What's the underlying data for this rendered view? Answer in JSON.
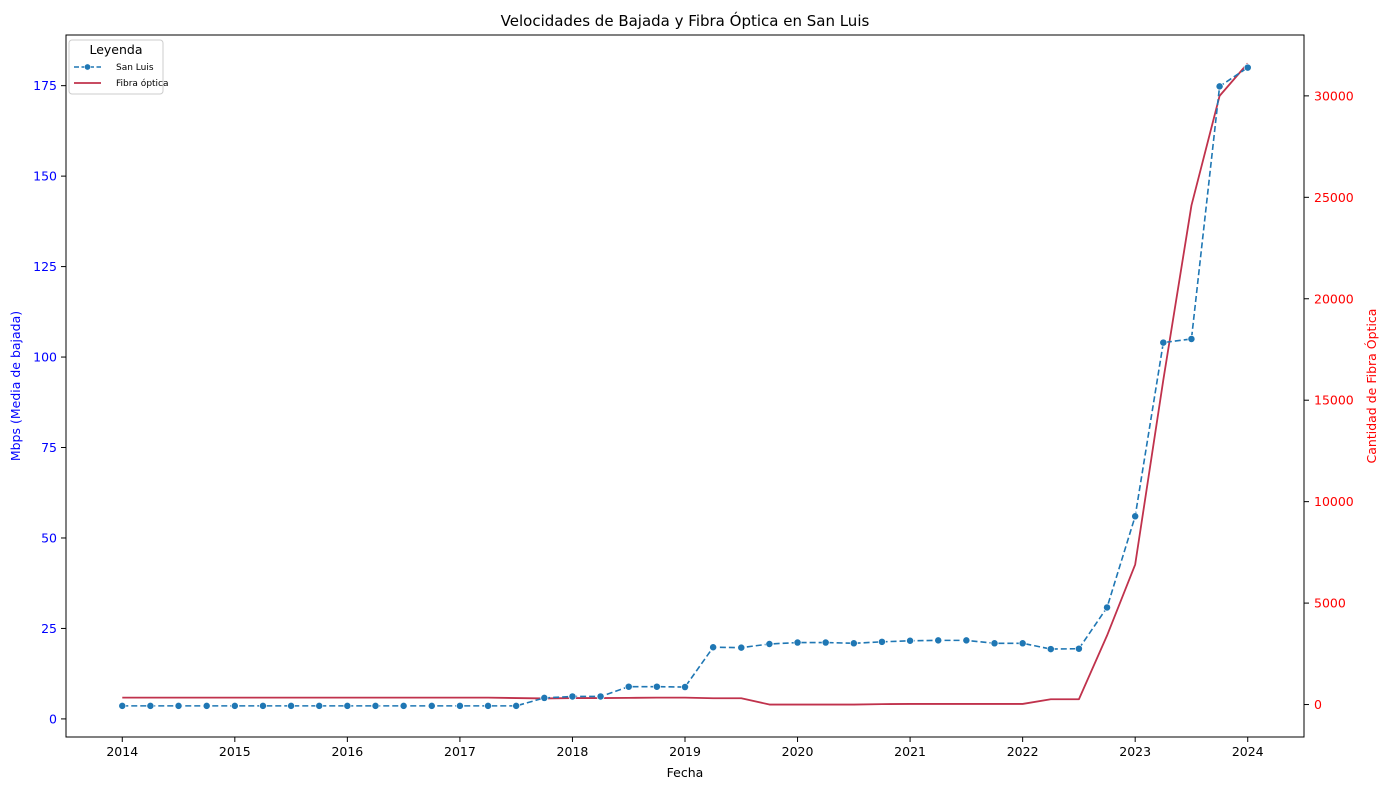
{
  "chart_data": {
    "type": "line",
    "title": "Velocidades de Bajada y Fibra Óptica en San Luis",
    "xlabel": "Fecha",
    "ylabel_left": "Mbps (Media de bajada)",
    "ylabel_right": "Cantidad de Fibra Óptica",
    "x_ticks": [
      "2014",
      "2015",
      "2016",
      "2017",
      "2018",
      "2019",
      "2020",
      "2021",
      "2022",
      "2023",
      "2024"
    ],
    "x_range": [
      2013.5,
      2024.5
    ],
    "y_left_ticks": [
      0,
      25,
      50,
      75,
      100,
      125,
      150,
      175
    ],
    "y_left_range": [
      -5,
      189
    ],
    "y_right_ticks": [
      0,
      5000,
      10000,
      15000,
      20000,
      25000,
      30000
    ],
    "y_right_range": [
      -1600,
      33000
    ],
    "left_axis_color": "#0000ff",
    "right_axis_color": "#ff0000",
    "grid": false,
    "legend": {
      "title": "Leyenda",
      "placement": "top-left",
      "entries": [
        "San Luis",
        "Fibra óptica"
      ]
    },
    "series": [
      {
        "name": "San Luis",
        "axis": "left",
        "color": "#1f77b4",
        "style": "dashed-marker",
        "x": [
          2014.0,
          2014.25,
          2014.5,
          2014.75,
          2015.0,
          2015.25,
          2015.5,
          2015.75,
          2016.0,
          2016.25,
          2016.5,
          2016.75,
          2017.0,
          2017.25,
          2017.5,
          2017.75,
          2018.0,
          2018.25,
          2018.5,
          2018.75,
          2019.0,
          2019.25,
          2019.5,
          2019.75,
          2020.0,
          2020.25,
          2020.5,
          2020.75,
          2021.0,
          2021.25,
          2021.5,
          2021.75,
          2022.0,
          2022.25,
          2022.5,
          2022.75,
          2023.0,
          2023.25,
          2023.5,
          2023.75,
          2024.0
        ],
        "values": [
          3.6,
          3.6,
          3.6,
          3.6,
          3.6,
          3.6,
          3.6,
          3.6,
          3.6,
          3.6,
          3.6,
          3.6,
          3.6,
          3.6,
          3.6,
          5.8,
          6.2,
          6.2,
          8.9,
          8.9,
          8.8,
          19.8,
          19.7,
          20.7,
          21.1,
          21.1,
          20.9,
          21.3,
          21.6,
          21.7,
          21.7,
          20.9,
          20.9,
          19.3,
          19.4,
          30.8,
          56.0,
          104.0,
          105.0,
          174.8,
          180.0
        ]
      },
      {
        "name": "Fibra óptica",
        "axis": "right",
        "color": "#c0324c",
        "style": "solid",
        "x": [
          2014.0,
          2014.25,
          2014.5,
          2014.75,
          2015.0,
          2015.25,
          2015.5,
          2015.75,
          2016.0,
          2016.25,
          2016.5,
          2016.75,
          2017.0,
          2017.25,
          2017.5,
          2017.75,
          2018.0,
          2018.25,
          2018.5,
          2018.75,
          2019.0,
          2019.25,
          2019.5,
          2019.75,
          2020.0,
          2020.25,
          2020.5,
          2020.75,
          2021.0,
          2021.25,
          2021.5,
          2021.75,
          2022.0,
          2022.25,
          2022.5,
          2022.75,
          2023.0,
          2023.25,
          2023.5,
          2023.75,
          2024.0
        ],
        "values": [
          340,
          340,
          340,
          340,
          340,
          340,
          340,
          340,
          340,
          340,
          340,
          340,
          340,
          340,
          320,
          300,
          320,
          320,
          330,
          340,
          340,
          310,
          310,
          0,
          0,
          0,
          0,
          20,
          30,
          30,
          30,
          30,
          30,
          260,
          260,
          3400,
          6900,
          16000,
          24600,
          30000,
          31600
        ]
      }
    ]
  }
}
